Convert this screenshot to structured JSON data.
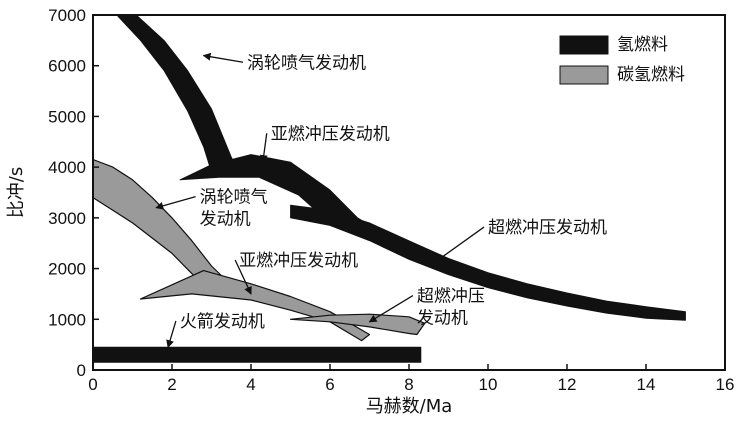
{
  "chart_data": {
    "type": "area",
    "xlabel": "马赫数/Ma",
    "ylabel": "比冲/s",
    "xlim": [
      0,
      16
    ],
    "ylim": [
      0,
      7000
    ],
    "xticks": [
      "0",
      "2",
      "4",
      "6",
      "8",
      "10",
      "12",
      "14",
      "16"
    ],
    "yticks": [
      "0",
      "1000",
      "2000",
      "3000",
      "4000",
      "5000",
      "6000",
      "7000"
    ],
    "grid": false,
    "legend": {
      "placement": "top-right",
      "entries": [
        {
          "label": "氢燃料",
          "color": "#111111"
        },
        {
          "label": "碳氢燃料",
          "color": "#9a9a9a"
        }
      ]
    },
    "series": [
      {
        "name": "涡轮喷气发动机",
        "fuel": "氢燃料",
        "label_text": "涡轮喷气发动机",
        "upper": [
          [
            1.1,
            7000
          ],
          [
            1.8,
            6500
          ],
          [
            2.4,
            5900
          ],
          [
            3.0,
            5150
          ],
          [
            3.5,
            4200
          ],
          [
            3.7,
            3900
          ]
        ],
        "lower": [
          [
            0.6,
            7000
          ],
          [
            1.2,
            6500
          ],
          [
            1.8,
            5900
          ],
          [
            2.4,
            5100
          ],
          [
            2.8,
            4400
          ],
          [
            3.0,
            3900
          ]
        ]
      },
      {
        "name": "亚燃冲压发动机",
        "fuel": "氢燃料",
        "label_text": "亚燃冲压发动机",
        "upper": [
          [
            2.2,
            3750
          ],
          [
            3.0,
            4050
          ],
          [
            4.0,
            4250
          ],
          [
            5.0,
            4100
          ],
          [
            6.0,
            3550
          ],
          [
            6.7,
            3000
          ]
        ],
        "lower": [
          [
            2.2,
            3750
          ],
          [
            3.2,
            3800
          ],
          [
            4.2,
            3800
          ],
          [
            5.2,
            3450
          ],
          [
            6.0,
            2900
          ],
          [
            6.9,
            2900
          ]
        ]
      },
      {
        "name": "超燃冲压发动机",
        "fuel": "氢燃料",
        "label_text": "超燃冲压发动机",
        "upper": [
          [
            5.0,
            3250
          ],
          [
            6.0,
            3150
          ],
          [
            7.0,
            2900
          ],
          [
            8.0,
            2550
          ],
          [
            9.0,
            2200
          ],
          [
            10.0,
            1920
          ],
          [
            11.0,
            1700
          ],
          [
            12.0,
            1520
          ],
          [
            13.0,
            1360
          ],
          [
            14.0,
            1250
          ],
          [
            15.0,
            1150
          ]
        ],
        "lower": [
          [
            5.0,
            3000
          ],
          [
            6.0,
            2850
          ],
          [
            7.0,
            2550
          ],
          [
            8.0,
            2180
          ],
          [
            9.0,
            1880
          ],
          [
            10.0,
            1620
          ],
          [
            11.0,
            1420
          ],
          [
            12.0,
            1260
          ],
          [
            13.0,
            1120
          ],
          [
            14.0,
            1020
          ],
          [
            15.0,
            980
          ]
        ]
      },
      {
        "name": "涡轮喷气发动机",
        "fuel": "碳氢燃料",
        "label_text": "涡轮喷气发动机",
        "upper": [
          [
            0,
            4150
          ],
          [
            0.5,
            4000
          ],
          [
            1.0,
            3750
          ],
          [
            1.5,
            3400
          ],
          [
            2.0,
            3000
          ],
          [
            2.5,
            2550
          ],
          [
            3.0,
            2050
          ],
          [
            3.6,
            1600
          ]
        ],
        "lower": [
          [
            0,
            3400
          ],
          [
            0.5,
            3150
          ],
          [
            1.0,
            2900
          ],
          [
            1.5,
            2600
          ],
          [
            2.0,
            2300
          ],
          [
            2.5,
            1900
          ],
          [
            3.0,
            1550
          ],
          [
            3.6,
            1700
          ]
        ]
      },
      {
        "name": "亚燃冲压发动机",
        "fuel": "碳氢燃料",
        "label_text": "亚燃冲压发动机",
        "upper": [
          [
            1.2,
            1400
          ],
          [
            2.0,
            1680
          ],
          [
            2.8,
            1960
          ],
          [
            4.0,
            1700
          ],
          [
            5.0,
            1450
          ],
          [
            6.0,
            1150
          ],
          [
            7.0,
            700
          ]
        ],
        "lower": [
          [
            1.2,
            1400
          ],
          [
            2.5,
            1500
          ],
          [
            4.0,
            1380
          ],
          [
            5.0,
            1180
          ],
          [
            6.0,
            950
          ],
          [
            6.8,
            580
          ]
        ]
      },
      {
        "name": "超燃冲压发动机",
        "fuel": "碳氢燃料",
        "label_text": "超燃冲压发动机",
        "upper": [
          [
            5.0,
            1000
          ],
          [
            6.0,
            1080
          ],
          [
            7.0,
            1100
          ],
          [
            8.0,
            1050
          ],
          [
            8.4,
            920
          ]
        ],
        "lower": [
          [
            5.0,
            1000
          ],
          [
            6.0,
            950
          ],
          [
            7.0,
            850
          ],
          [
            8.0,
            720
          ],
          [
            8.2,
            700
          ]
        ]
      },
      {
        "name": "火箭发动机",
        "fuel": "氢燃料",
        "label_text": "火箭发动机",
        "upper": [
          [
            0,
            450
          ],
          [
            8.3,
            450
          ]
        ],
        "lower": [
          [
            0,
            150
          ],
          [
            8.3,
            150
          ]
        ]
      }
    ],
    "annotations": [
      {
        "text": "涡轮喷气发动机",
        "lines": [
          "涡轮喷气发动机"
        ],
        "x": 3.9,
        "y": 5950,
        "arrow_to": [
          2.8,
          6200
        ]
      },
      {
        "text": "亚燃冲压发动机",
        "lines": [
          "亚燃冲压发动机"
        ],
        "x": 4.5,
        "y": 4550,
        "arrow_to": [
          4.3,
          4100
        ]
      },
      {
        "text": "超燃冲压发动机",
        "lines": [
          "超燃冲压发动机"
        ],
        "x": 10.0,
        "y": 2700,
        "arrow_to": [
          8.7,
          2150
        ]
      },
      {
        "text": "涡轮喷气发动机",
        "lines": [
          "涡轮喷气",
          "发动机"
        ],
        "x": 2.7,
        "y": 3300,
        "arrow_to": [
          1.6,
          3200
        ]
      },
      {
        "text": "亚燃冲压发动机",
        "lines": [
          "亚燃冲压发动机"
        ],
        "x": 3.7,
        "y": 2050,
        "arrow_to": [
          4.0,
          1500
        ]
      },
      {
        "text": "超燃冲压发动机",
        "lines": [
          "超燃冲压",
          "发动机"
        ],
        "x": 8.2,
        "y": 1350,
        "arrow_to": [
          7.0,
          950
        ]
      },
      {
        "text": "火箭发动机",
        "lines": [
          "火箭发动机"
        ],
        "x": 2.2,
        "y": 850,
        "arrow_to": [
          1.9,
          450
        ]
      }
    ]
  }
}
